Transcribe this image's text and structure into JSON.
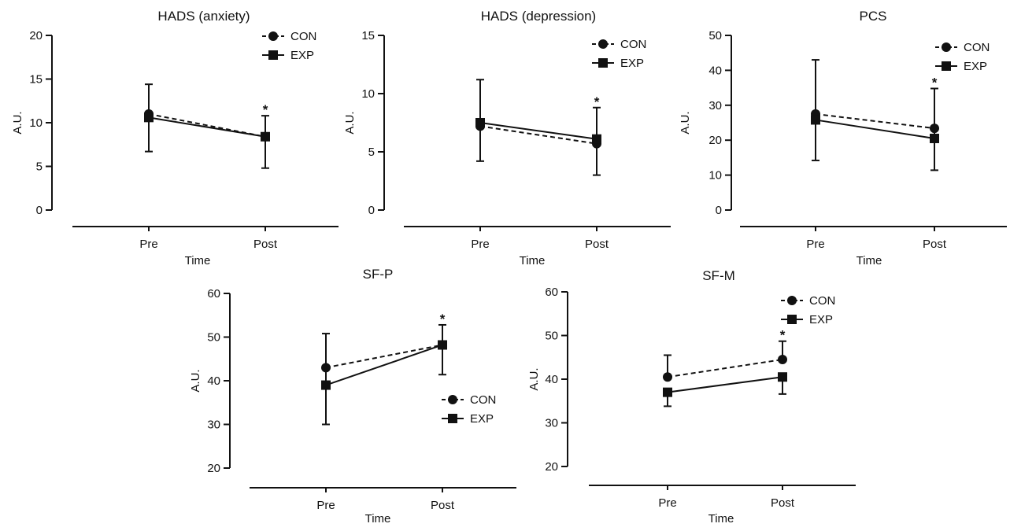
{
  "figure": {
    "legend_labels": [
      "CON",
      "EXP"
    ],
    "series_styles": {
      "CON": {
        "line": "dashed",
        "marker": "circle"
      },
      "EXP": {
        "line": "solid",
        "marker": "square"
      }
    },
    "colors": {
      "ink": "#111111",
      "background": "#ffffff"
    }
  },
  "chart_data": [
    {
      "type": "line",
      "title": "HADS (anxiety)",
      "xlabel": "Time",
      "ylabel": "A.U.",
      "categories": [
        "Pre",
        "Post"
      ],
      "ylim": [
        0,
        20
      ],
      "yticks": [
        "0",
        "5",
        "10",
        "15",
        "20"
      ],
      "grid": false,
      "legend_position": "top-right",
      "significance": [
        {
          "category": "Post",
          "label": "*"
        }
      ],
      "series": [
        {
          "name": "CON",
          "values": [
            11.0,
            8.4
          ],
          "error": [
            [
              11.0,
              11.0
            ],
            [
              8.4,
              8.4
            ]
          ]
        },
        {
          "name": "EXP",
          "values": [
            10.6,
            8.4
          ],
          "error": [
            [
              14.4,
              6.7
            ],
            [
              10.8,
              4.8
            ]
          ]
        }
      ]
    },
    {
      "type": "line",
      "title": "HADS (depression)",
      "xlabel": "Time",
      "ylabel": "A.U.",
      "categories": [
        "Pre",
        "Post"
      ],
      "ylim": [
        0,
        15
      ],
      "yticks": [
        "0",
        "5",
        "10",
        "15"
      ],
      "grid": false,
      "legend_position": "top-right",
      "significance": [
        {
          "category": "Post",
          "label": "*"
        }
      ],
      "series": [
        {
          "name": "CON",
          "values": [
            7.2,
            5.7
          ],
          "error": [
            [
              7.2,
              7.2
            ],
            [
              5.7,
              5.7
            ]
          ]
        },
        {
          "name": "EXP",
          "values": [
            7.5,
            6.1
          ],
          "error": [
            [
              11.2,
              4.2
            ],
            [
              8.8,
              3.0
            ]
          ]
        }
      ]
    },
    {
      "type": "line",
      "title": "PCS",
      "xlabel": "Time",
      "ylabel": "A.U.",
      "categories": [
        "Pre",
        "Post"
      ],
      "ylim": [
        0,
        50
      ],
      "yticks": [
        "0",
        "10",
        "20",
        "30",
        "40",
        "50"
      ],
      "grid": false,
      "legend_position": "top-right",
      "significance": [
        {
          "category": "Post",
          "label": "*"
        }
      ],
      "series": [
        {
          "name": "CON",
          "values": [
            27.5,
            23.4
          ],
          "error": [
            [
              27.5,
              27.5
            ],
            [
              23.4,
              23.4
            ]
          ]
        },
        {
          "name": "EXP",
          "values": [
            25.8,
            20.5
          ],
          "error": [
            [
              43.0,
              14.2
            ],
            [
              34.8,
              11.4
            ]
          ]
        }
      ]
    },
    {
      "type": "line",
      "title": "SF-P",
      "xlabel": "Time",
      "ylabel": "A.U.",
      "categories": [
        "Pre",
        "Post"
      ],
      "ylim": [
        20,
        60
      ],
      "yticks": [
        "20",
        "30",
        "40",
        "50",
        "60"
      ],
      "grid": false,
      "legend_position": "lower-right",
      "significance": [
        {
          "category": "Post",
          "label": "*"
        }
      ],
      "series": [
        {
          "name": "CON",
          "values": [
            43.0,
            48.2
          ],
          "error": [
            [
              43.0,
              43.0
            ],
            [
              48.2,
              48.2
            ]
          ]
        },
        {
          "name": "EXP",
          "values": [
            39.0,
            48.2
          ],
          "error": [
            [
              50.8,
              30.0
            ],
            [
              52.8,
              41.4
            ]
          ]
        }
      ]
    },
    {
      "type": "line",
      "title": "SF-M",
      "xlabel": "Time",
      "ylabel": "A.U.",
      "categories": [
        "Pre",
        "Post"
      ],
      "ylim": [
        20,
        60
      ],
      "yticks": [
        "20",
        "30",
        "40",
        "50",
        "60"
      ],
      "grid": false,
      "legend_position": "top-right",
      "significance": [
        {
          "category": "Post",
          "label": "*"
        }
      ],
      "series": [
        {
          "name": "CON",
          "values": [
            40.5,
            44.5
          ],
          "error": [
            [
              45.5,
              40.5
            ],
            [
              48.7,
              44.5
            ]
          ]
        },
        {
          "name": "EXP",
          "values": [
            37.0,
            40.5
          ],
          "error": [
            [
              37.0,
              33.8
            ],
            [
              40.5,
              36.6
            ]
          ]
        }
      ]
    }
  ]
}
